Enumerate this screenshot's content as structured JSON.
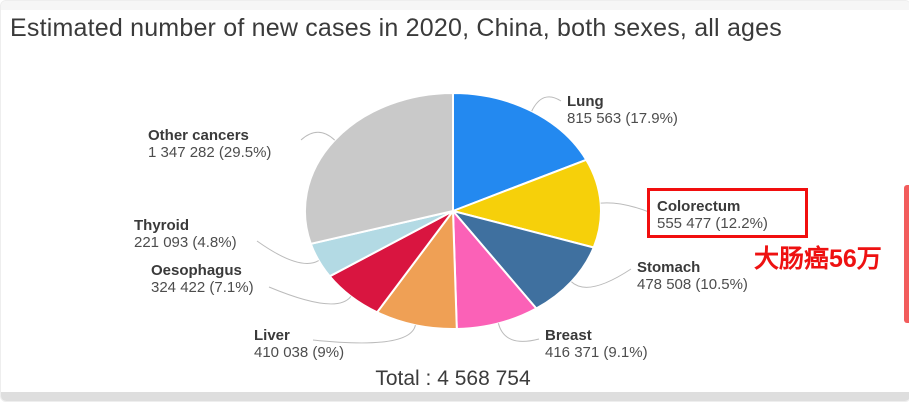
{
  "page": {
    "title": "Estimated number of new cases in 2020, China, both sexes, all ages",
    "total_label": "Total : 4 568 754",
    "annotation": {
      "text": "大肠癌56万",
      "color": "#ee1111"
    },
    "highlight_color": "#f10e0e",
    "leader_line_color": "#bbbbbb"
  },
  "chart_data": {
    "type": "pie",
    "title": "Estimated number of new cases in 2020, China, both sexes, all ages",
    "total": 4568754,
    "total_label": "Total : 4 568 754",
    "start_angle_deg": 0,
    "direction": "clockwise",
    "legend_position": "outside-labels",
    "slices": [
      {
        "name": "Lung",
        "value": 815563,
        "pct": 17.9,
        "label": "815 563 (17.9%)",
        "color": "#2389f0"
      },
      {
        "name": "Colorectum",
        "value": 555477,
        "pct": 12.2,
        "label": "555 477 (12.2%)",
        "color": "#f6d00a",
        "highlighted": true
      },
      {
        "name": "Stomach",
        "value": 478508,
        "pct": 10.5,
        "label": "478 508 (10.5%)",
        "color": "#3f709f"
      },
      {
        "name": "Breast",
        "value": 416371,
        "pct": 9.1,
        "label": "416 371 (9.1%)",
        "color": "#fb61b7"
      },
      {
        "name": "Liver",
        "value": 410038,
        "pct": 9.0,
        "label": "410 038 (9%)",
        "color": "#efa055"
      },
      {
        "name": "Oesophagus",
        "value": 324422,
        "pct": 7.1,
        "label": "324 422 (7.1%)",
        "color": "#d91540"
      },
      {
        "name": "Thyroid",
        "value": 221093,
        "pct": 4.8,
        "label": "221 093 (4.8%)",
        "color": "#b3dae4"
      },
      {
        "name": "Other cancers",
        "value": 1347282,
        "pct": 29.5,
        "label": "1 347 282 (29.5%)",
        "color": "#c9c9c9"
      }
    ]
  }
}
